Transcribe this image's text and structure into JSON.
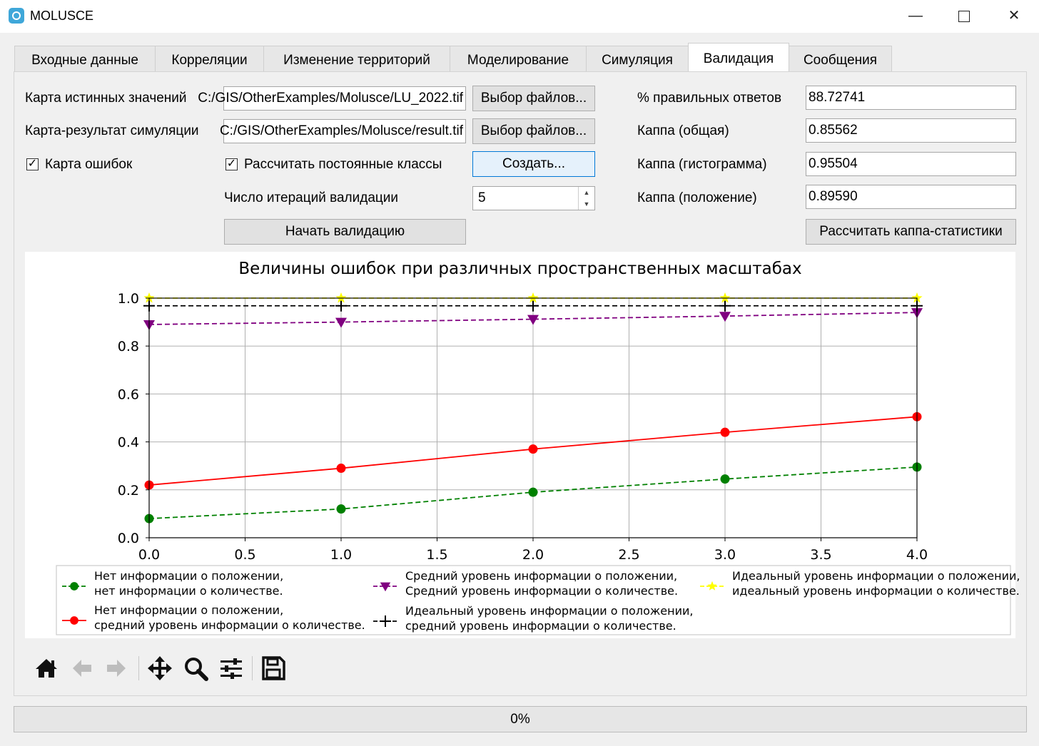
{
  "window": {
    "title": "MOLUSCE"
  },
  "tabs": [
    {
      "label": "Входные данные"
    },
    {
      "label": "Корреляции"
    },
    {
      "label": "Изменение территорий"
    },
    {
      "label": "Моделирование"
    },
    {
      "label": "Симуляция"
    },
    {
      "label": "Валидация",
      "active": true
    },
    {
      "label": "Сообщения"
    }
  ],
  "validation": {
    "reference_label": "Карта истинных значений",
    "reference_value": "C:/GIS/OtherExamples/Molusce/LU_2022.tif",
    "result_label": "Карта-результат симуляции",
    "result_value": "C:/GIS/OtherExamples/Molusce/result.tif",
    "browse_label": "Выбор файлов...",
    "error_map_label": "Карта ошибок",
    "error_map_checked": true,
    "persistent_label": "Рассчитать постоянные классы",
    "persistent_checked": true,
    "create_label": "Создать...",
    "iterations_label": "Число итераций валидации",
    "iterations_value": "5",
    "start_label": "Начать валидацию"
  },
  "stats": {
    "correct_label": "% правильных ответов",
    "correct_value": "88.72741",
    "kappa_label": "Каппа (общая)",
    "kappa_value": "0.85562",
    "kappa_hist_label": "Каппа (гистограмма)",
    "kappa_hist_value": "0.95504",
    "kappa_loc_label": "Каппа (положение)",
    "kappa_loc_value": "0.89590",
    "calc_label": "Рассчитать каппа-статистики"
  },
  "chart_data": {
    "type": "line",
    "title": "Величины ошибок при различных пространственных масштабах",
    "xlim": [
      0,
      4
    ],
    "ylim": [
      0,
      1
    ],
    "x_ticks": [
      "0.0",
      "0.5",
      "1.0",
      "1.5",
      "2.0",
      "2.5",
      "3.0",
      "3.5",
      "4.0"
    ],
    "y_ticks": [
      "0.0",
      "0.2",
      "0.4",
      "0.6",
      "0.8",
      "1.0"
    ],
    "grid": true,
    "legend_position": "bottom",
    "x": [
      0,
      1,
      2,
      3,
      4
    ],
    "series": [
      {
        "name": "Нет информации о положении,\nнет информации о количестве.",
        "values": [
          0.08,
          0.12,
          0.19,
          0.245,
          0.295
        ],
        "color": "#008000",
        "dash": true,
        "marker": "circle"
      },
      {
        "name": "Нет информации о положении,\nсредний уровень информации о количестве.",
        "values": [
          0.22,
          0.29,
          0.37,
          0.44,
          0.505
        ],
        "color": "#ff0000",
        "dash": false,
        "marker": "circle"
      },
      {
        "name": "Средний уровень информации о положении,\nСредний уровень информации о количестве.",
        "values": [
          0.89,
          0.9,
          0.912,
          0.925,
          0.94
        ],
        "color": "#800080",
        "dash": true,
        "marker": "triangle-down"
      },
      {
        "name": "Идеальный уровень информации о положении,\nсредний уровень информации о количестве.",
        "values": [
          0.968,
          0.968,
          0.968,
          0.968,
          0.968
        ],
        "color": "#000000",
        "dash": true,
        "marker": "plus"
      },
      {
        "name": "Идеальный уровень информации о положении,\nидеальный уровень информации о количестве.",
        "values": [
          1.0,
          1.0,
          1.0,
          1.0,
          1.0
        ],
        "color": "#ffff00",
        "dash": true,
        "marker": "star"
      }
    ]
  },
  "toolbar": {
    "icons": [
      "home-icon",
      "back-arrow-icon",
      "forward-arrow-icon",
      "pan-icon",
      "zoom-icon",
      "configure-icon",
      "save-icon"
    ]
  },
  "progress": {
    "text": "0%",
    "value": 0
  }
}
